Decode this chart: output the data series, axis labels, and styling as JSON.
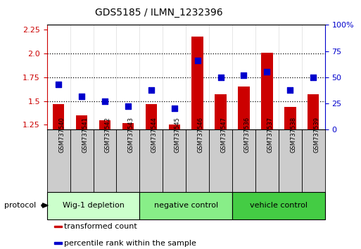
{
  "title": "GDS5185 / ILMN_1232396",
  "samples": [
    "GSM737540",
    "GSM737541",
    "GSM737542",
    "GSM737543",
    "GSM737544",
    "GSM737545",
    "GSM737546",
    "GSM737547",
    "GSM737536",
    "GSM737537",
    "GSM737538",
    "GSM737539"
  ],
  "bar_values": [
    1.47,
    1.35,
    1.3,
    1.27,
    1.47,
    1.25,
    2.18,
    1.57,
    1.65,
    2.01,
    1.44,
    1.57
  ],
  "dot_pct": [
    43,
    32,
    27,
    22,
    38,
    20,
    66,
    50,
    52,
    55,
    38,
    50
  ],
  "bar_color": "#cc0000",
  "dot_color": "#0000cc",
  "ylim_left": [
    1.2,
    2.3
  ],
  "ylim_right": [
    0,
    100
  ],
  "yticks_left": [
    1.25,
    1.5,
    1.75,
    2.0,
    2.25
  ],
  "yticks_right": [
    0,
    25,
    50,
    75,
    100
  ],
  "hlines": [
    1.5,
    1.75,
    2.0
  ],
  "groups": [
    {
      "label": "Wig-1 depletion",
      "n": 4,
      "color": "#ccffcc"
    },
    {
      "label": "negative control",
      "n": 4,
      "color": "#88ee88"
    },
    {
      "label": "vehicle control",
      "n": 4,
      "color": "#44cc44"
    }
  ],
  "sample_box_color": "#cccccc",
  "protocol_label": "protocol",
  "legend_items": [
    {
      "label": "transformed count",
      "color": "#cc0000"
    },
    {
      "label": "percentile rank within the sample",
      "color": "#0000cc"
    }
  ],
  "bar_width": 0.5,
  "dot_size": 30,
  "title_fontsize": 10,
  "tick_fontsize": 8,
  "sample_fontsize": 6,
  "group_fontsize": 8,
  "legend_fontsize": 8
}
